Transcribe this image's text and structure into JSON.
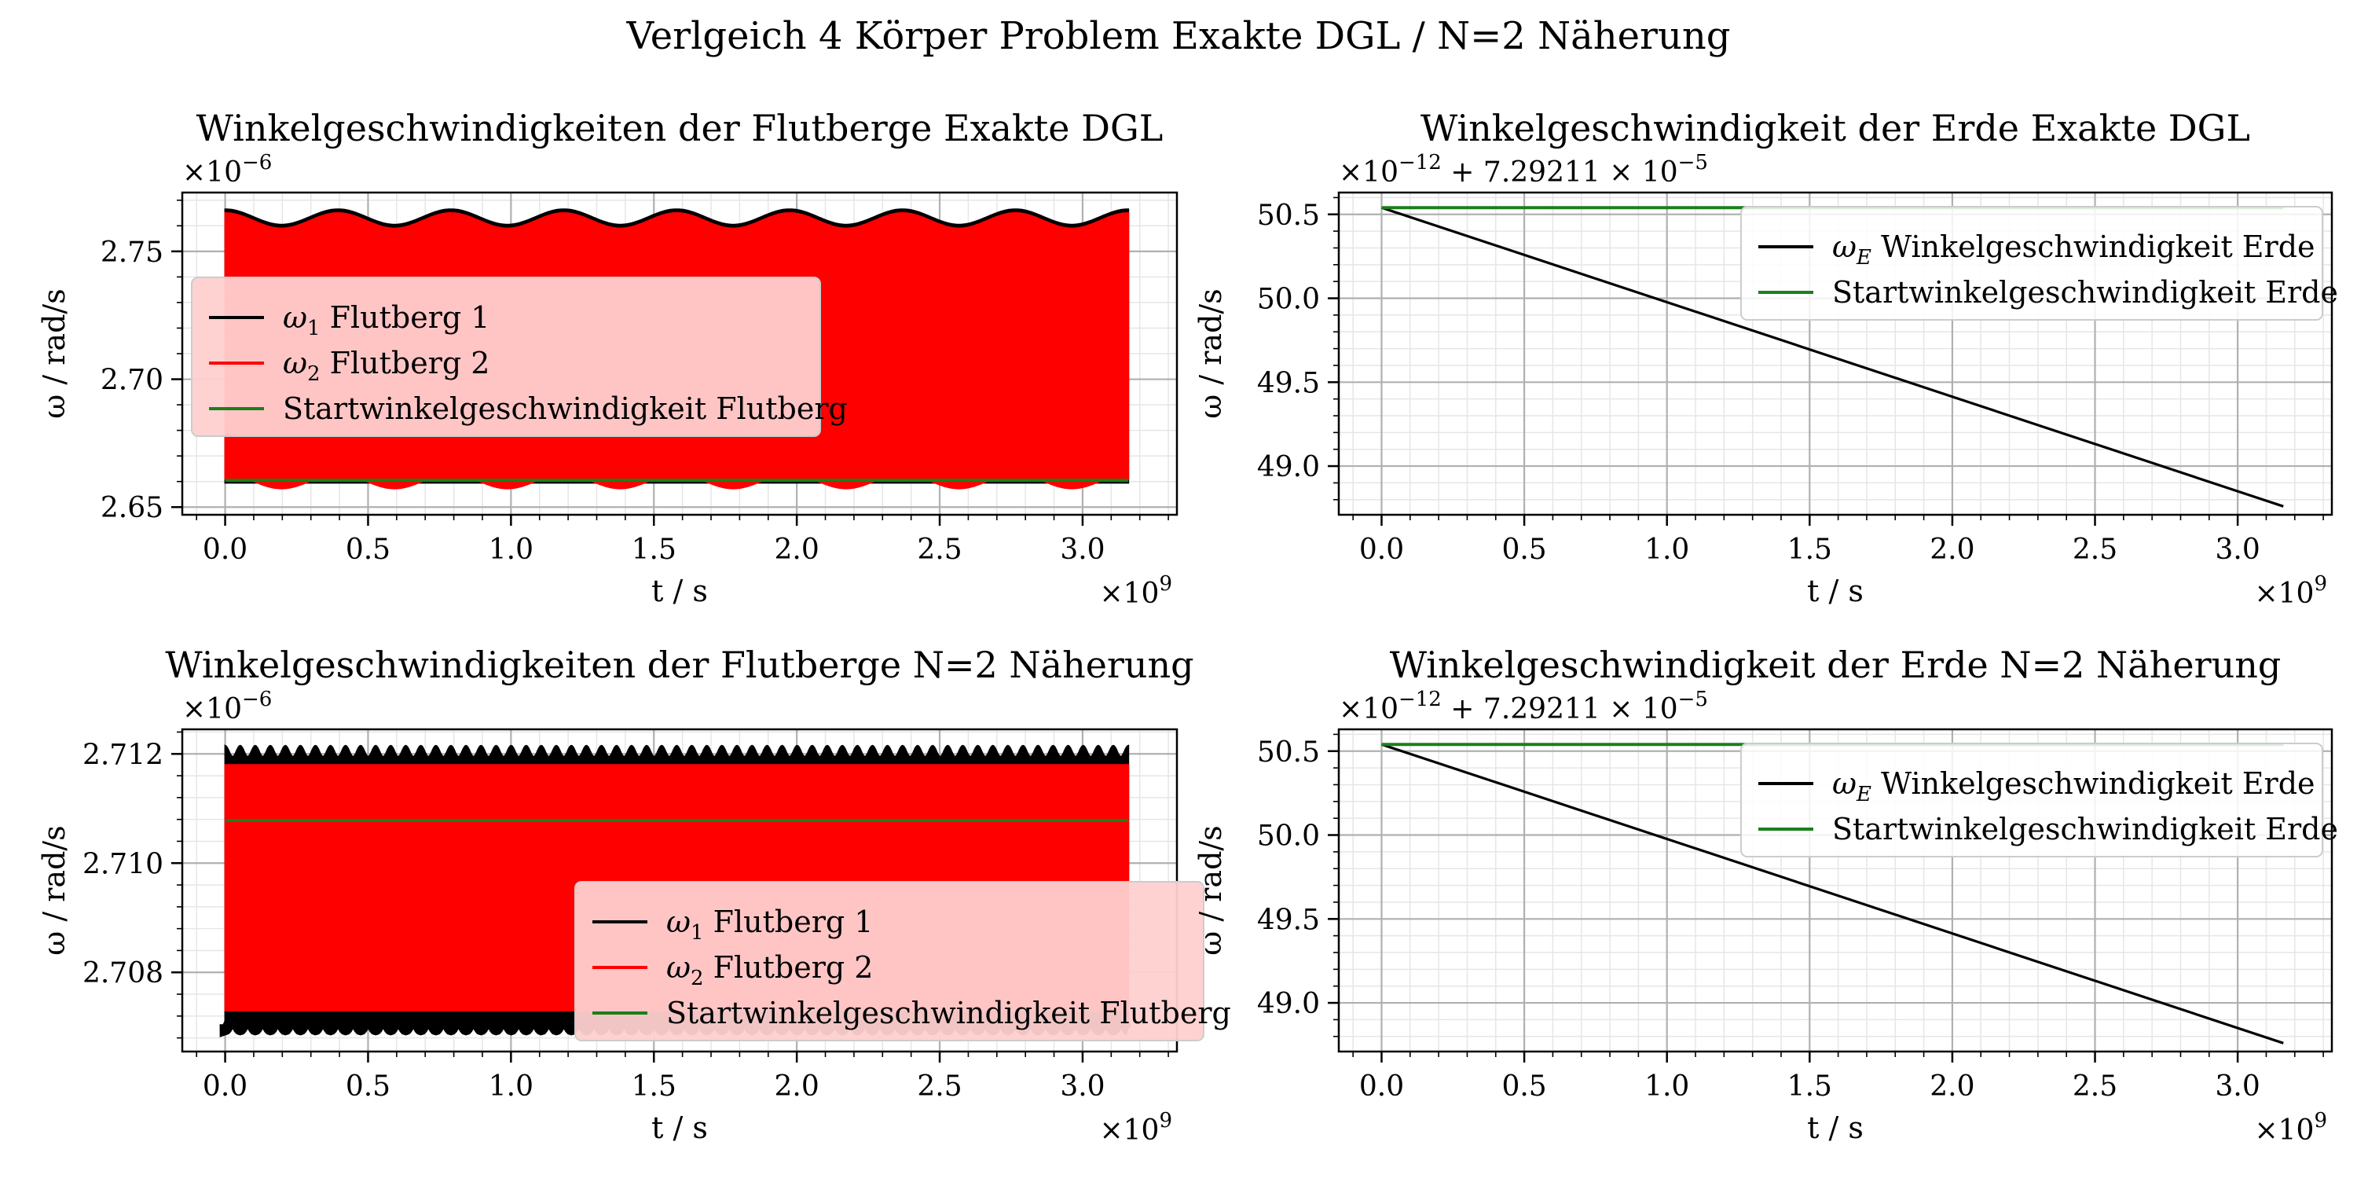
{
  "figure_title": "Verlgeich 4 Körper Problem Exakte DGL / N=2 Näherung",
  "colors": {
    "omega1": "#000000",
    "omega2": "#ff0000",
    "start": "#1a7f1a",
    "grid_major": "#b0b0b0",
    "grid_minor": "#e6e6e6",
    "legend_bg": "#ffd0d0"
  },
  "chart_data": [
    {
      "id": "p1",
      "type": "line",
      "title": "Winkelgeschwindigkeiten der Flutberge Exakte DGL",
      "xlabel": "t / s",
      "ylabel": "ω / rad/s",
      "x_multiplier": "×10",
      "x_multiplier_exp": "9",
      "y_offset": "×10",
      "y_offset_exp": "−6",
      "xlim": [
        -0.15,
        3.33
      ],
      "ylim": [
        2.647,
        2.773
      ],
      "xticks": [
        0.0,
        0.5,
        1.0,
        1.5,
        2.0,
        2.5,
        3.0
      ],
      "xtick_labels": [
        "0.0",
        "0.5",
        "1.0",
        "1.5",
        "2.0",
        "2.5",
        "3.0"
      ],
      "yticks": [
        2.65,
        2.7,
        2.75
      ],
      "ytick_labels": [
        "2.65",
        "2.70",
        "2.75"
      ],
      "x_range": [
        0.0,
        3.16
      ],
      "band_omega1": {
        "low": 2.6595,
        "high_base": 2.7635,
        "ripple": 0.003,
        "periods": 8
      },
      "band_omega2": {
        "low": 2.661,
        "high_base": 2.762,
        "ripple": 0.003,
        "periods": 8
      },
      "start_value": 2.6605,
      "legend": [
        {
          "sym": "ω",
          "sub": "1",
          "text": " Flutberg 1",
          "key": "omega1"
        },
        {
          "sym": "ω",
          "sub": "2",
          "text": " Flutberg 2",
          "key": "omega2"
        },
        {
          "sym": "",
          "sub": "",
          "text": "Startwinkelgeschwindigkeit Flutberg",
          "key": "start"
        }
      ],
      "legend_loc": "center-left"
    },
    {
      "id": "p2",
      "type": "line",
      "title": "Winkelgeschwindigkeit der Erde Exakte DGL",
      "xlabel": "t / s",
      "ylabel": "ω / rad/s",
      "x_multiplier": "×10",
      "x_multiplier_exp": "9",
      "y_offset": "×10",
      "y_offset_exp": "−12",
      "y_offset_tail": " + 7.29211 × 10",
      "y_offset_tail_exp": "−5",
      "xlim": [
        -0.15,
        3.33
      ],
      "ylim": [
        48.71,
        50.63
      ],
      "xticks": [
        0.0,
        0.5,
        1.0,
        1.5,
        2.0,
        2.5,
        3.0
      ],
      "xtick_labels": [
        "0.0",
        "0.5",
        "1.0",
        "1.5",
        "2.0",
        "2.5",
        "3.0"
      ],
      "yticks": [
        49.0,
        49.5,
        50.0,
        50.5
      ],
      "ytick_labels": [
        "49.0",
        "49.5",
        "50.0",
        "50.5"
      ],
      "omega_e": {
        "x": [
          0.0,
          3.16
        ],
        "y": [
          50.54,
          48.76
        ]
      },
      "start_value": 50.54,
      "x_range": [
        0.0,
        3.16
      ],
      "legend": [
        {
          "sym": "ω",
          "sub": "E",
          "text": " Winkelgeschwindigkeit Erde",
          "key": "omega1"
        },
        {
          "sym": "",
          "sub": "",
          "text": "Startwinkelgeschwindigkeit Erde",
          "key": "start"
        }
      ],
      "legend_loc": "upper-right"
    },
    {
      "id": "p3",
      "type": "line",
      "title": "Winkelgeschwindigkeiten der Flutberge N=2 Näherung",
      "xlabel": "t / s",
      "ylabel": "ω / rad/s",
      "x_multiplier": "×10",
      "x_multiplier_exp": "9",
      "y_offset": "×10",
      "y_offset_exp": "−6",
      "xlim": [
        -0.15,
        3.33
      ],
      "ylim": [
        2.70655,
        2.71245
      ],
      "xticks": [
        0.0,
        0.5,
        1.0,
        1.5,
        2.0,
        2.5,
        3.0
      ],
      "xtick_labels": [
        "0.0",
        "0.5",
        "1.0",
        "1.5",
        "2.0",
        "2.5",
        "3.0"
      ],
      "yticks": [
        2.708,
        2.71,
        2.712
      ],
      "ytick_labels": [
        "2.708",
        "2.710",
        "2.712"
      ],
      "x_range": [
        0.0,
        3.16
      ],
      "band_omega1": {
        "low": 2.70705,
        "high_base": 2.71205,
        "ripple": 0.0001,
        "periods": 60
      },
      "band_omega2": {
        "low": 2.7073,
        "high_base": 2.7118,
        "ripple": 0.0,
        "periods": 0
      },
      "start_value": 2.71078,
      "legend": [
        {
          "sym": "ω",
          "sub": "1",
          "text": " Flutberg 1",
          "key": "omega1"
        },
        {
          "sym": "ω",
          "sub": "2",
          "text": " Flutberg 2",
          "key": "omega2"
        },
        {
          "sym": "",
          "sub": "",
          "text": "Startwinkelgeschwindigkeit Flutberg",
          "key": "start"
        }
      ],
      "legend_loc": "lower-right"
    },
    {
      "id": "p4",
      "type": "line",
      "title": "Winkelgeschwindigkeit der Erde N=2 Näherung",
      "xlabel": "t / s",
      "ylabel": "ω / rad/s",
      "x_multiplier": "×10",
      "x_multiplier_exp": "9",
      "y_offset": "×10",
      "y_offset_exp": "−12",
      "y_offset_tail": " + 7.29211 × 10",
      "y_offset_tail_exp": "−5",
      "xlim": [
        -0.15,
        3.33
      ],
      "ylim": [
        48.71,
        50.63
      ],
      "xticks": [
        0.0,
        0.5,
        1.0,
        1.5,
        2.0,
        2.5,
        3.0
      ],
      "xtick_labels": [
        "0.0",
        "0.5",
        "1.0",
        "1.5",
        "2.0",
        "2.5",
        "3.0"
      ],
      "yticks": [
        49.0,
        49.5,
        50.0,
        50.5
      ],
      "ytick_labels": [
        "49.0",
        "49.5",
        "50.0",
        "50.5"
      ],
      "omega_e": {
        "x": [
          0.0,
          3.16
        ],
        "y": [
          50.54,
          48.76
        ]
      },
      "start_value": 50.54,
      "x_range": [
        0.0,
        3.16
      ],
      "legend": [
        {
          "sym": "ω",
          "sub": "E",
          "text": " Winkelgeschwindigkeit Erde",
          "key": "omega1"
        },
        {
          "sym": "",
          "sub": "",
          "text": "Startwinkelgeschwindigkeit Erde",
          "key": "start"
        }
      ],
      "legend_loc": "upper-right"
    }
  ]
}
